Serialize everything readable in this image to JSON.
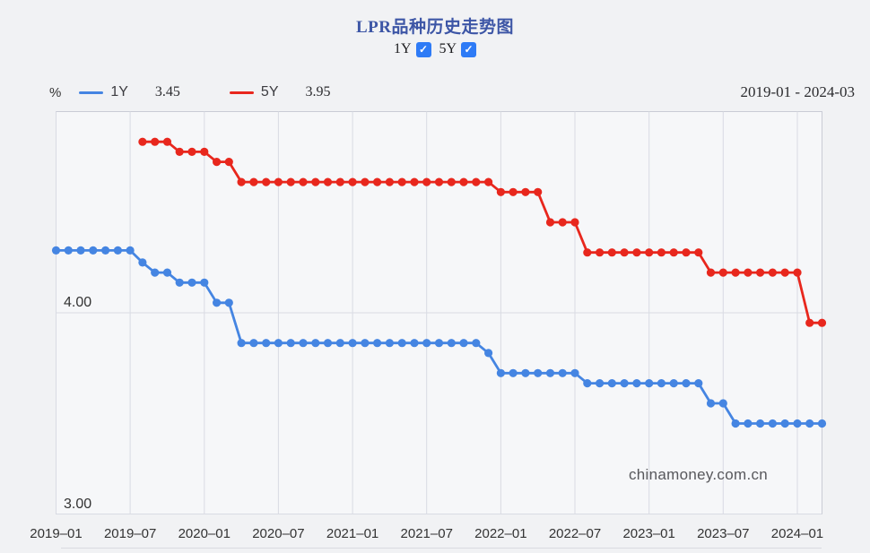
{
  "header": {
    "title": "LPR品种历史走势图",
    "unit_label": "%",
    "date_range": "2019-01 - 2024-03"
  },
  "toggles": [
    {
      "label": "1Y",
      "checked": true
    },
    {
      "label": "5Y",
      "checked": true
    }
  ],
  "legend": [
    {
      "label": "1Y",
      "latest_value": "3.45",
      "color": "#4585e2"
    },
    {
      "label": "5Y",
      "latest_value": "3.95",
      "color": "#e8271d"
    }
  ],
  "watermark": "chinamoney.com.cn",
  "icons": {
    "check": "✓"
  },
  "colors": {
    "accent_blue_line": "#4585e2",
    "accent_red_line": "#e8271d",
    "title_blue": "#3d56a6",
    "checkbox_blue": "#2e7bf6",
    "plot_background": "#f6f7f9",
    "plot_border": "#c9ccd5",
    "gridline": "#d9dbe3"
  },
  "chart_data": {
    "type": "line",
    "title": "LPR品种历史走势图",
    "ylabel": "%",
    "ylim": [
      3.0,
      5.0
    ],
    "x_range": [
      "2019-01",
      "2024-03"
    ],
    "months_total": 63,
    "grid": true,
    "legend_position": "top-left",
    "x_tick_indices": [
      0,
      6,
      12,
      18,
      24,
      30,
      36,
      42,
      48,
      54,
      60
    ],
    "x_tick_labels": [
      "2019–01",
      "2019–07",
      "2020–01",
      "2020–07",
      "2021–01",
      "2021–07",
      "2022–01",
      "2022–07",
      "2023–01",
      "2023–07",
      "2024–01"
    ],
    "y_ticks": [
      {
        "value": 4.0,
        "label": "4.00"
      },
      {
        "value": 3.0,
        "label": "3.00"
      }
    ],
    "series": [
      {
        "name": "1Y",
        "color": "#4585e2",
        "start_month": "2019-01",
        "start_month_index": 0,
        "values": [
          4.31,
          4.31,
          4.31,
          4.31,
          4.31,
          4.31,
          4.31,
          4.25,
          4.2,
          4.2,
          4.15,
          4.15,
          4.15,
          4.05,
          4.05,
          3.85,
          3.85,
          3.85,
          3.85,
          3.85,
          3.85,
          3.85,
          3.85,
          3.85,
          3.85,
          3.85,
          3.85,
          3.85,
          3.85,
          3.85,
          3.85,
          3.85,
          3.85,
          3.85,
          3.85,
          3.8,
          3.7,
          3.7,
          3.7,
          3.7,
          3.7,
          3.7,
          3.7,
          3.65,
          3.65,
          3.65,
          3.65,
          3.65,
          3.65,
          3.65,
          3.65,
          3.65,
          3.65,
          3.55,
          3.55,
          3.45,
          3.45,
          3.45,
          3.45,
          3.45,
          3.45,
          3.45,
          3.45
        ]
      },
      {
        "name": "5Y",
        "color": "#e8271d",
        "start_month": "2019-08",
        "start_month_index": 7,
        "values": [
          4.85,
          4.85,
          4.85,
          4.8,
          4.8,
          4.8,
          4.75,
          4.75,
          4.65,
          4.65,
          4.65,
          4.65,
          4.65,
          4.65,
          4.65,
          4.65,
          4.65,
          4.65,
          4.65,
          4.65,
          4.65,
          4.65,
          4.65,
          4.65,
          4.65,
          4.65,
          4.65,
          4.65,
          4.65,
          4.6,
          4.6,
          4.6,
          4.6,
          4.45,
          4.45,
          4.45,
          4.3,
          4.3,
          4.3,
          4.3,
          4.3,
          4.3,
          4.3,
          4.3,
          4.3,
          4.3,
          4.2,
          4.2,
          4.2,
          4.2,
          4.2,
          4.2,
          4.2,
          4.2,
          3.95,
          3.95
        ]
      }
    ]
  }
}
